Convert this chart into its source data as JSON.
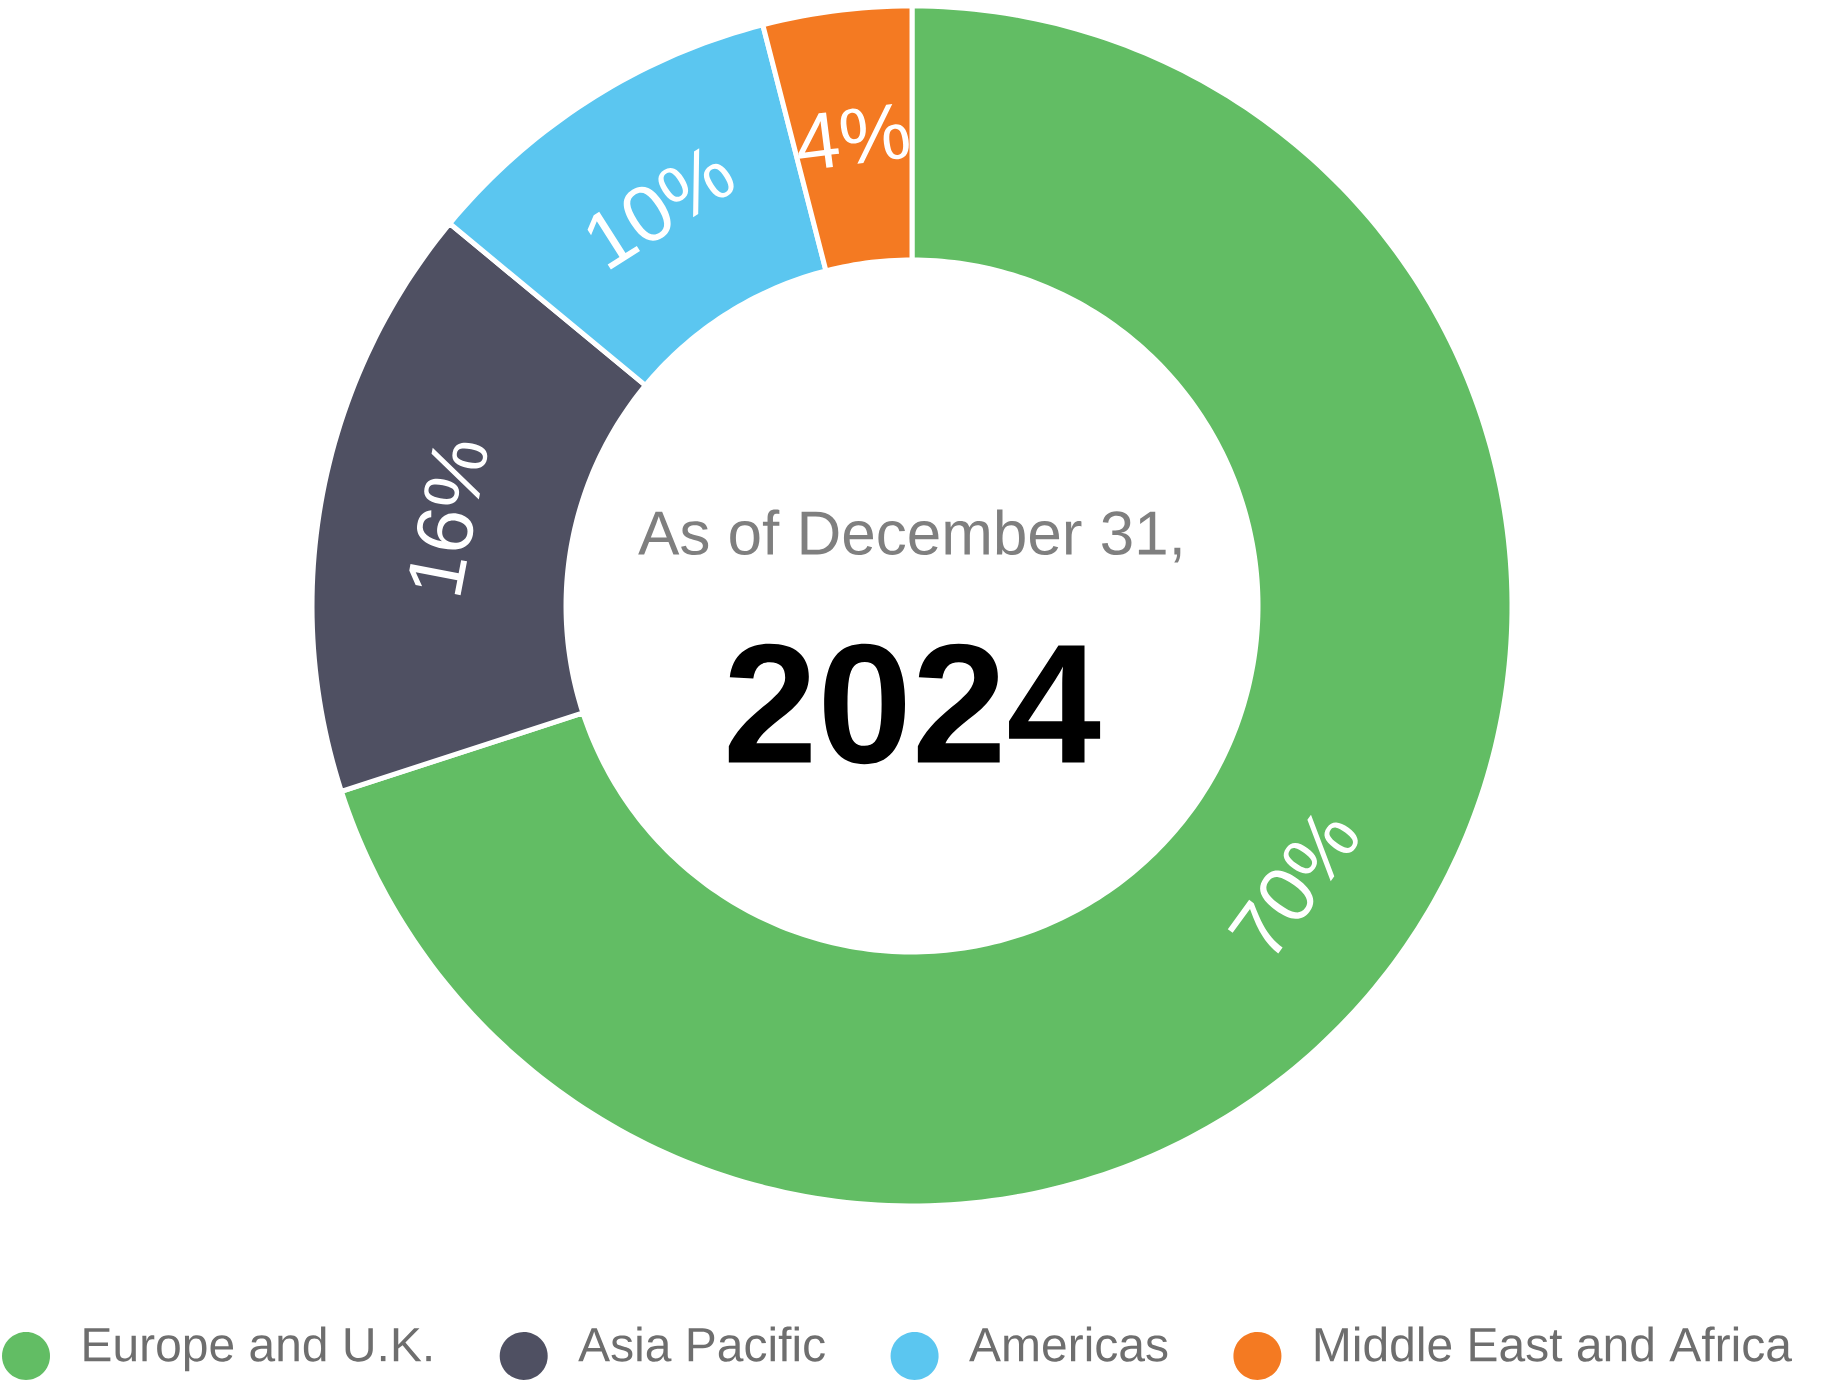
{
  "chart_data": {
    "type": "donut",
    "categories": [
      "Europe and U.K.",
      "Asia Pacific",
      "Americas",
      "Middle East and Africa"
    ],
    "values": [
      70,
      16,
      10,
      4
    ],
    "colors": [
      "#62bd64",
      "#4f5062",
      "#5bc6f0",
      "#f47a22"
    ],
    "value_labels": [
      "70%",
      "16%",
      "10%",
      "4%"
    ],
    "annotations": [
      "As of December 31,",
      "2024"
    ],
    "legend": "bottom"
  }
}
